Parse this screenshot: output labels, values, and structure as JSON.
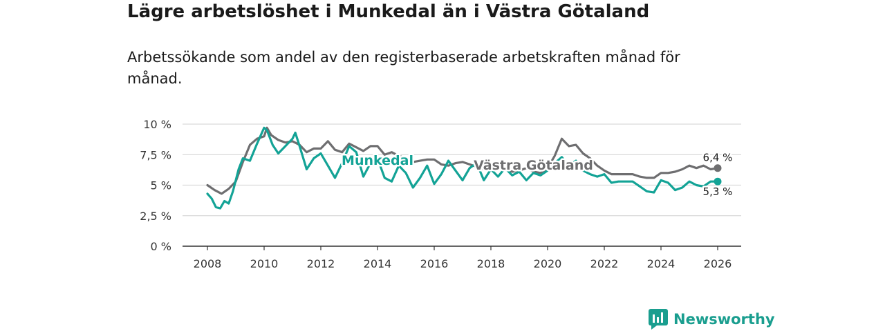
{
  "header": {
    "title": "Lägre arbetslöshet i Munkedal än i Västra Götaland",
    "subtitle": "Arbetssökande som andel av den registerbaserade arbetskraften månad för månad."
  },
  "brand": {
    "name": "Newsworthy",
    "icon": "newsworthy-bar-chart-logo"
  },
  "colors": {
    "munkedal": "#13a396",
    "vastra_gotaland": "#6e6e70",
    "grid": "#d9d9d9",
    "axis": "#333333"
  },
  "chart_data": {
    "type": "line",
    "title": "Lägre arbetslöshet i Munkedal än i Västra Götaland",
    "ylabel": "",
    "xlabel": "",
    "ylim": [
      0,
      10
    ],
    "xlim": [
      2007.5,
      2026.7
    ],
    "y_ticks": [
      0,
      2.5,
      5,
      7.5,
      10
    ],
    "y_tick_labels": [
      "0 %",
      "2,5 %",
      "5 %",
      "7,5 %",
      "10 %"
    ],
    "x_ticks": [
      2008,
      2010,
      2012,
      2014,
      2016,
      2018,
      2020,
      2022,
      2024,
      2026
    ],
    "x_tick_labels": [
      "2008",
      "2010",
      "2012",
      "2014",
      "2016",
      "2018",
      "2020",
      "2022",
      "2024",
      "2026"
    ],
    "grid": true,
    "series": [
      {
        "name": "Västra Götaland",
        "label": "Västra Götaland",
        "end_label": "6,4 %",
        "end_value": 6.4,
        "color": "#6e6e70",
        "x": [
          2008.0,
          2008.25,
          2008.5,
          2008.75,
          2009.0,
          2009.25,
          2009.5,
          2009.75,
          2010.0,
          2010.1,
          2010.25,
          2010.5,
          2010.75,
          2011.0,
          2011.25,
          2011.5,
          2011.75,
          2012.0,
          2012.25,
          2012.5,
          2012.75,
          2013.0,
          2013.25,
          2013.5,
          2013.75,
          2014.0,
          2014.25,
          2014.5,
          2014.75,
          2015.0,
          2015.25,
          2015.5,
          2015.75,
          2016.0,
          2016.25,
          2016.5,
          2016.75,
          2017.0,
          2017.25,
          2017.5,
          2017.75,
          2018.0,
          2018.25,
          2018.5,
          2018.75,
          2019.0,
          2019.25,
          2019.5,
          2019.75,
          2020.0,
          2020.25,
          2020.5,
          2020.75,
          2021.0,
          2021.25,
          2021.5,
          2021.75,
          2022.0,
          2022.25,
          2022.5,
          2022.75,
          2023.0,
          2023.25,
          2023.5,
          2023.75,
          2024.0,
          2024.25,
          2024.5,
          2024.75,
          2025.0,
          2025.25,
          2025.5,
          2025.75,
          2026.0
        ],
        "values": [
          5.0,
          4.6,
          4.3,
          4.7,
          5.3,
          6.9,
          8.3,
          8.8,
          9.0,
          9.7,
          9.1,
          8.7,
          8.5,
          8.6,
          8.3,
          7.7,
          8.0,
          8.0,
          8.6,
          7.9,
          7.7,
          8.4,
          8.1,
          7.8,
          8.2,
          8.2,
          7.5,
          7.7,
          7.4,
          7.2,
          6.9,
          7.0,
          7.1,
          7.1,
          6.7,
          6.6,
          6.8,
          6.9,
          6.7,
          6.5,
          6.3,
          6.5,
          6.4,
          6.3,
          6.1,
          6.2,
          6.4,
          6.1,
          6.0,
          6.4,
          7.4,
          8.8,
          8.2,
          8.3,
          7.6,
          7.2,
          6.6,
          6.2,
          5.9,
          5.9,
          5.9,
          5.9,
          5.7,
          5.6,
          5.6,
          6.0,
          6.0,
          6.1,
          6.3,
          6.6,
          6.4,
          6.6,
          6.3,
          6.4
        ]
      },
      {
        "name": "Munkedal",
        "label": "Munkedal",
        "end_label": "5,3 %",
        "end_value": 5.3,
        "color": "#13a396",
        "x": [
          2008.0,
          2008.15,
          2008.3,
          2008.45,
          2008.6,
          2008.75,
          2008.9,
          2009.1,
          2009.25,
          2009.5,
          2009.75,
          2010.0,
          2010.1,
          2010.3,
          2010.5,
          2010.75,
          2011.0,
          2011.1,
          2011.25,
          2011.5,
          2011.75,
          2012.0,
          2012.25,
          2012.5,
          2012.75,
          2013.0,
          2013.25,
          2013.5,
          2013.75,
          2014.0,
          2014.25,
          2014.5,
          2014.75,
          2015.0,
          2015.25,
          2015.5,
          2015.75,
          2016.0,
          2016.25,
          2016.5,
          2016.75,
          2017.0,
          2017.25,
          2017.5,
          2017.75,
          2018.0,
          2018.25,
          2018.5,
          2018.75,
          2019.0,
          2019.25,
          2019.5,
          2019.75,
          2020.0,
          2020.25,
          2020.5,
          2020.75,
          2021.0,
          2021.25,
          2021.5,
          2021.75,
          2022.0,
          2022.25,
          2022.5,
          2022.75,
          2023.0,
          2023.25,
          2023.5,
          2023.75,
          2024.0,
          2024.25,
          2024.5,
          2024.75,
          2025.0,
          2025.25,
          2025.5,
          2025.75,
          2026.0
        ],
        "values": [
          4.3,
          3.9,
          3.2,
          3.1,
          3.7,
          3.5,
          4.5,
          6.3,
          7.2,
          7.0,
          8.4,
          9.7,
          9.5,
          8.3,
          7.6,
          8.2,
          8.8,
          9.3,
          8.2,
          6.3,
          7.2,
          7.6,
          6.6,
          5.6,
          6.8,
          8.2,
          7.7,
          5.7,
          6.8,
          7.2,
          5.6,
          5.3,
          6.6,
          6.0,
          4.8,
          5.6,
          6.6,
          5.1,
          5.9,
          7.0,
          6.2,
          5.4,
          6.4,
          6.8,
          5.4,
          6.3,
          5.7,
          6.4,
          5.8,
          6.1,
          5.4,
          6.0,
          5.8,
          6.2,
          6.8,
          7.3,
          6.6,
          7.0,
          6.2,
          5.9,
          5.7,
          5.9,
          5.2,
          5.3,
          5.3,
          5.3,
          4.9,
          4.5,
          4.4,
          5.4,
          5.2,
          4.6,
          4.8,
          5.3,
          5.0,
          4.9,
          5.3,
          5.3
        ]
      }
    ],
    "annotations": [
      {
        "text": "Munkedal",
        "series": "Munkedal",
        "at_x": 2014.0,
        "at_y": 7.0
      },
      {
        "text": "Västra Götaland",
        "series": "Västra Götaland",
        "at_x": 2019.5,
        "at_y": 6.6
      }
    ]
  }
}
